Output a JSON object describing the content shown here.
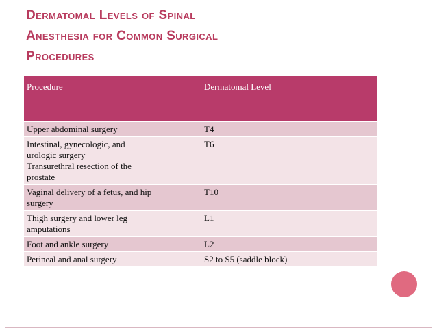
{
  "title": {
    "lines": [
      "Dermatomal Levels of Spinal",
      "Anesthesia for Common Surgical",
      "Procedures"
    ]
  },
  "table": {
    "headers": [
      "Procedure",
      "Dermatomal Level"
    ],
    "rows": [
      {
        "procedure": [
          "Upper abdominal surgery"
        ],
        "level": "T4"
      },
      {
        "procedure": [
          "Intestinal, gynecologic, and",
          "urologic surgery",
          "Transurethral resection of the",
          "prostate"
        ],
        "level": "T6"
      },
      {
        "procedure": [
          "Vaginal delivery of a fetus, and hip",
          "surgery"
        ],
        "level": "T10"
      },
      {
        "procedure": [
          "Thigh surgery and lower leg",
          "amputations"
        ],
        "level": "L1"
      },
      {
        "procedure": [
          "Foot and ankle surgery"
        ],
        "level": "L2"
      },
      {
        "procedure": [
          "Perineal and anal surgery"
        ],
        "level": "S2 to S5 (saddle block)"
      }
    ]
  },
  "colors": {
    "accent": "#b83b5e",
    "header_bg": "#b83b6a",
    "row_odd": "#e5c7d0",
    "row_even": "#f3e3e7",
    "dot": "#e06a80"
  }
}
